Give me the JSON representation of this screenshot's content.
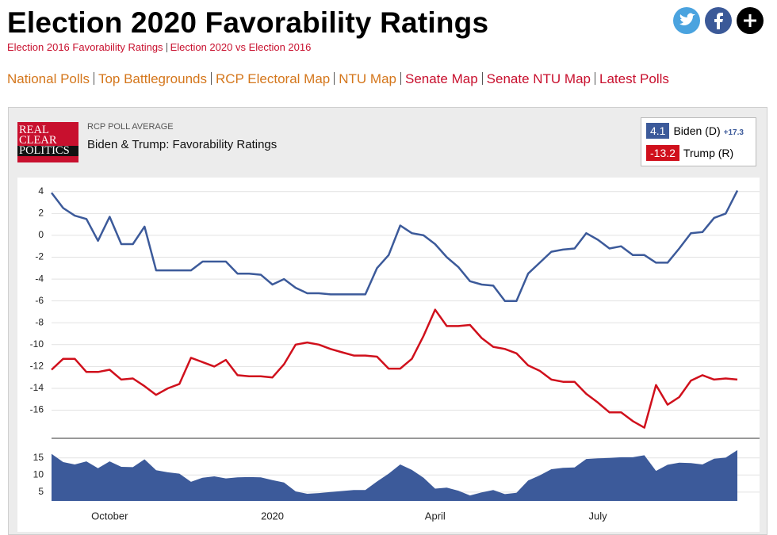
{
  "header": {
    "title": "Election 2020 Favorability Ratings",
    "links": [
      "Election 2016 Favorability Ratings",
      "Election 2020 vs Election 2016"
    ]
  },
  "nav": [
    "National Polls",
    "Top Battlegrounds",
    "RCP Electoral Map",
    "NTU Map",
    "Senate Map",
    "Senate NTU Map",
    "Latest Polls"
  ],
  "chart_header": {
    "logo": [
      "REAL",
      "CLEAR",
      "POLITICS"
    ],
    "kicker": "RCP POLL AVERAGE"
  },
  "chart_data": [
    {
      "type": "line",
      "title": "Biden & Trump: Favorability Ratings",
      "categories": [
        null,
        null,
        null,
        null,
        null,
        "October",
        null,
        null,
        null,
        null,
        null,
        null,
        null,
        null,
        null,
        null,
        null,
        null,
        null,
        "2020",
        null,
        null,
        null,
        null,
        null,
        null,
        null,
        null,
        null,
        null,
        null,
        null,
        null,
        "April",
        null,
        null,
        null,
        null,
        null,
        null,
        null,
        null,
        null,
        null,
        null,
        null,
        null,
        "July",
        null,
        null,
        null,
        null,
        null,
        null,
        null,
        null,
        null,
        null,
        null,
        null
      ],
      "series": [
        {
          "name": "Biden (D)",
          "color": "#3c5a9a",
          "values": [
            3.9,
            2.5,
            1.8,
            1.5,
            -0.5,
            1.7,
            -0.8,
            -0.8,
            0.8,
            -3.2,
            -3.2,
            -3.2,
            -3.2,
            -2.4,
            -2.4,
            -2.4,
            -3.5,
            -3.5,
            -3.6,
            -4.5,
            -4.0,
            -4.8,
            -5.3,
            -5.3,
            -5.4,
            -5.4,
            -5.4,
            -5.4,
            -3.0,
            -1.8,
            0.9,
            0.2,
            0.0,
            -0.8,
            -2.0,
            -2.9,
            -4.2,
            -4.5,
            -4.6,
            -6.0,
            -6.0,
            -3.5,
            -2.5,
            -1.5,
            -1.3,
            -1.2,
            0.2,
            -0.4,
            -1.2,
            -1.0,
            -1.8,
            -1.8,
            -2.5,
            -2.5,
            -1.2,
            0.2,
            0.3,
            1.6,
            2.0,
            4.1
          ]
        },
        {
          "name": "Trump (R)",
          "color": "#d0101c",
          "values": [
            -12.3,
            -11.3,
            -11.3,
            -12.5,
            -12.5,
            -12.3,
            -13.2,
            -13.1,
            -13.8,
            -14.6,
            -14.0,
            -13.6,
            -11.2,
            -11.6,
            -12.0,
            -11.4,
            -12.8,
            -12.9,
            -12.9,
            -13.0,
            -11.8,
            -10.0,
            -9.8,
            -10.0,
            -10.4,
            -10.7,
            -11.0,
            -11.0,
            -11.1,
            -12.2,
            -12.2,
            -11.3,
            -9.2,
            -6.8,
            -8.3,
            -8.3,
            -8.2,
            -9.4,
            -10.2,
            -10.4,
            -10.8,
            -11.9,
            -12.4,
            -13.2,
            -13.4,
            -13.4,
            -14.5,
            -15.3,
            -16.2,
            -16.2,
            -17.0,
            -17.6,
            -13.7,
            -15.5,
            -14.8,
            -13.3,
            -12.8,
            -13.2,
            -13.1,
            -13.2
          ]
        }
      ],
      "ylim": [
        -18.5,
        5
      ],
      "yticks": [
        4,
        2,
        0,
        -2,
        -4,
        -6,
        -8,
        -10,
        -12,
        -14,
        -16
      ],
      "grid": true
    },
    {
      "type": "area",
      "color": "#3c5a9a",
      "latest_label": "+17.3",
      "values": [
        16.2,
        13.8,
        13.1,
        14.0,
        12.0,
        14.0,
        12.4,
        12.3,
        14.6,
        11.4,
        10.8,
        10.4,
        8.0,
        9.2,
        9.6,
        9.0,
        9.3,
        9.4,
        9.3,
        8.5,
        7.8,
        5.2,
        4.5,
        4.7,
        5.0,
        5.3,
        5.6,
        5.6,
        8.1,
        10.4,
        13.1,
        11.5,
        9.2,
        6.0,
        6.3,
        5.4,
        4.0,
        4.9,
        5.6,
        4.4,
        4.8,
        8.4,
        9.9,
        11.7,
        12.1,
        12.2,
        14.7,
        14.9,
        15.0,
        15.2,
        15.2,
        15.8,
        11.2,
        13.0,
        13.6,
        13.5,
        13.1,
        14.8,
        15.1,
        17.3
      ],
      "ylim": [
        2.4,
        20.3
      ],
      "yticks": [
        5,
        10,
        15
      ]
    }
  ]
}
